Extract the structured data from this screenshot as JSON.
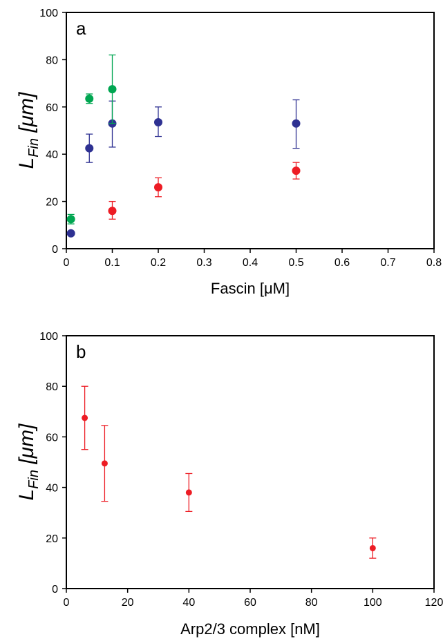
{
  "chart_data": [
    {
      "type": "scatter",
      "panel_label": "a",
      "xlabel": "Fascin [μM]",
      "ylabel": {
        "main": "L",
        "sub": "Fin",
        "unit": " [μm]"
      },
      "xlim": [
        0,
        0.8
      ],
      "ylim": [
        0,
        100
      ],
      "xticks": [
        "0",
        "0.1",
        "0.2",
        "0.3",
        "0.4",
        "0.5",
        "0.6",
        "0.7",
        "0.8"
      ],
      "yticks": [
        "0",
        "20",
        "40",
        "60",
        "80",
        "100"
      ],
      "grid": false,
      "legend": "none",
      "series": [
        {
          "color": "#2e3192",
          "points": [
            {
              "x": 0.01,
              "y": 6.5
            },
            {
              "x": 0.05,
              "y": 42.5,
              "err_low": 36.5,
              "err_high": 48.5
            },
            {
              "x": 0.1,
              "y": 53,
              "err_low": 43,
              "err_high": 62.5
            },
            {
              "x": 0.2,
              "y": 53.5,
              "err_low": 47.5,
              "err_high": 60
            },
            {
              "x": 0.5,
              "y": 53,
              "err_low": 42.5,
              "err_high": 63
            }
          ]
        },
        {
          "color": "#ed1c24",
          "points": [
            {
              "x": 0.1,
              "y": 16,
              "err_low": 12.5,
              "err_high": 20
            },
            {
              "x": 0.2,
              "y": 26,
              "err_low": 22,
              "err_high": 30
            },
            {
              "x": 0.5,
              "y": 33,
              "err_low": 29.5,
              "err_high": 36.5
            }
          ]
        },
        {
          "color": "#00a651",
          "points": [
            {
              "x": 0.01,
              "y": 12.5,
              "err_low": 10.5,
              "err_high": 14.5
            },
            {
              "x": 0.05,
              "y": 63.5,
              "err_low": 61.5,
              "err_high": 65.5
            },
            {
              "x": 0.1,
              "y": 67.5,
              "err_low": 53,
              "err_high": 82
            }
          ]
        }
      ]
    },
    {
      "type": "scatter",
      "panel_label": "b",
      "xlabel": "Arp2/3 complex [nM]",
      "ylabel": {
        "main": "L",
        "sub": "Fin",
        "unit": " [μm]"
      },
      "xlim": [
        0,
        120
      ],
      "ylim": [
        0,
        100
      ],
      "xticks": [
        "0",
        "20",
        "40",
        "60",
        "80",
        "100",
        "120"
      ],
      "yticks": [
        "0",
        "20",
        "40",
        "60",
        "80",
        "100"
      ],
      "grid": false,
      "legend": "none",
      "series": [
        {
          "color": "#ed1c24",
          "points": [
            {
              "x": 6,
              "y": 67.5,
              "err_low": 55,
              "err_high": 80
            },
            {
              "x": 12.5,
              "y": 49.5,
              "err_low": 34.5,
              "err_high": 64.5
            },
            {
              "x": 40,
              "y": 38,
              "err_low": 30.5,
              "err_high": 45.5
            },
            {
              "x": 100,
              "y": 16,
              "err_low": 12,
              "err_high": 20
            }
          ]
        }
      ]
    }
  ]
}
